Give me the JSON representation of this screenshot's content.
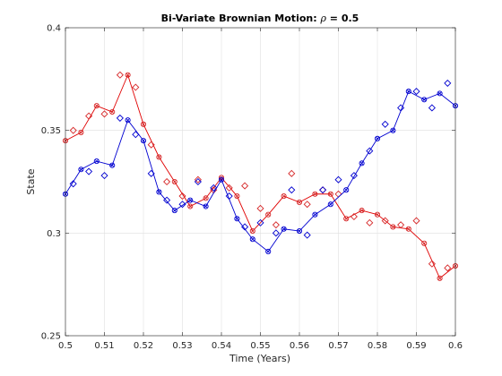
{
  "chart_data": {
    "type": "line",
    "title": "Bi-Variate Brownian Motion: ",
    "title_symbol": "ρ",
    "title_value": " = 0.5",
    "xlabel": "Time (Years)",
    "ylabel": "State",
    "xlim": [
      0.5,
      0.6
    ],
    "ylim": [
      0.25,
      0.4
    ],
    "grid": true,
    "xticks": [
      "0.5",
      "0.51",
      "0.52",
      "0.53",
      "0.54",
      "0.55",
      "0.56",
      "0.57",
      "0.58",
      "0.59",
      "0.6"
    ],
    "yticks": [
      "0.25",
      "0.3",
      "0.35",
      "0.4"
    ],
    "series": [
      {
        "color": "#d62728",
        "line_color": "#e00000",
        "x": [
          0.5,
          0.504,
          0.508,
          0.512,
          0.516,
          0.52,
          0.524,
          0.528,
          0.532,
          0.536,
          0.54,
          0.544,
          0.548,
          0.552,
          0.556,
          0.56,
          0.564,
          0.568,
          0.572,
          0.576,
          0.58,
          0.584,
          0.588,
          0.592,
          0.596,
          0.6
        ],
        "y": [
          0.345,
          0.349,
          0.362,
          0.359,
          0.377,
          0.353,
          0.337,
          0.325,
          0.313,
          0.317,
          0.327,
          0.318,
          0.301,
          0.309,
          0.318,
          0.315,
          0.319,
          0.319,
          0.307,
          0.311,
          0.309,
          0.303,
          0.302,
          0.295,
          0.278,
          0.284
        ],
        "scatter_x": [
          0.502,
          0.506,
          0.51,
          0.514,
          0.518,
          0.522,
          0.526,
          0.53,
          0.534,
          0.538,
          0.542,
          0.546,
          0.55,
          0.554,
          0.558,
          0.562,
          0.566,
          0.57,
          0.574,
          0.578,
          0.582,
          0.586,
          0.59,
          0.594,
          0.598
        ],
        "scatter_y": [
          0.35,
          0.357,
          0.358,
          0.377,
          0.371,
          0.343,
          0.325,
          0.318,
          0.326,
          0.321,
          0.322,
          0.323,
          0.312,
          0.304,
          0.329,
          0.314,
          0.321,
          0.319,
          0.308,
          0.305,
          0.306,
          0.304,
          0.306,
          0.285,
          0.283
        ]
      },
      {
        "color": "#0000d0",
        "line_color": "#0000d0",
        "x": [
          0.5,
          0.504,
          0.508,
          0.512,
          0.516,
          0.52,
          0.524,
          0.528,
          0.532,
          0.536,
          0.54,
          0.544,
          0.548,
          0.552,
          0.556,
          0.56,
          0.564,
          0.568,
          0.572,
          0.576,
          0.58,
          0.584,
          0.588,
          0.592,
          0.596,
          0.6
        ],
        "y": [
          0.319,
          0.331,
          0.335,
          0.333,
          0.355,
          0.345,
          0.32,
          0.311,
          0.316,
          0.313,
          0.326,
          0.307,
          0.297,
          0.291,
          0.302,
          0.301,
          0.309,
          0.314,
          0.321,
          0.334,
          0.346,
          0.35,
          0.369,
          0.365,
          0.368,
          0.362
        ],
        "scatter_x": [
          0.502,
          0.506,
          0.51,
          0.514,
          0.518,
          0.522,
          0.526,
          0.53,
          0.534,
          0.538,
          0.542,
          0.546,
          0.55,
          0.554,
          0.558,
          0.562,
          0.566,
          0.57,
          0.574,
          0.578,
          0.582,
          0.586,
          0.59,
          0.594,
          0.598
        ],
        "scatter_y": [
          0.324,
          0.33,
          0.328,
          0.356,
          0.348,
          0.329,
          0.316,
          0.314,
          0.325,
          0.322,
          0.318,
          0.303,
          0.305,
          0.3,
          0.321,
          0.299,
          0.321,
          0.326,
          0.328,
          0.34,
          0.353,
          0.361,
          0.369,
          0.361,
          0.373
        ]
      }
    ]
  }
}
